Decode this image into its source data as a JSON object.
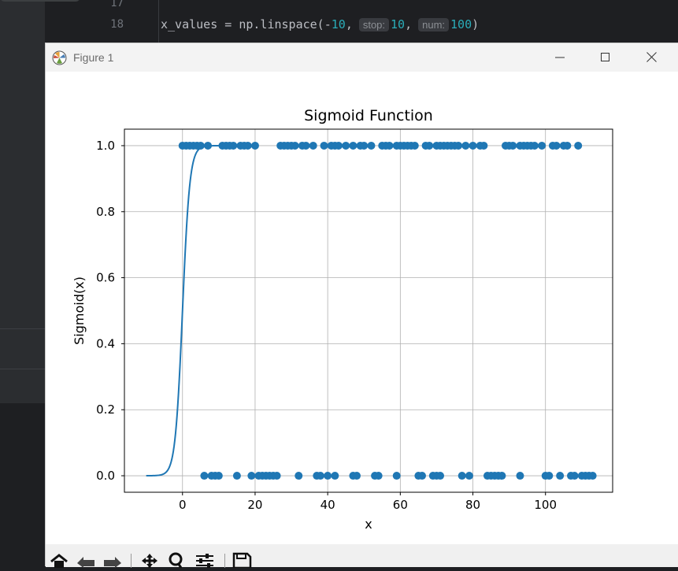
{
  "ide": {
    "line_numbers": [
      "17",
      "18"
    ],
    "code": {
      "prefix": "x_values = np.linspace(-",
      "start": "10",
      "comma1": ",",
      "hint_stop": "stop:",
      "stop": "10",
      "comma2": ",",
      "hint_num": "num:",
      "num": "100",
      "suffix": ")"
    }
  },
  "window": {
    "title": "Figure 1",
    "minimize_icon": "minimize-icon",
    "maximize_icon": "maximize-icon",
    "close_icon": "close-icon"
  },
  "toolbar": {
    "buttons": [
      "home-icon",
      "back-icon",
      "forward-icon",
      "pan-icon",
      "zoom-icon",
      "configure-subplots-icon",
      "save-icon"
    ]
  },
  "chart_data": {
    "type": "line",
    "title": "Sigmoid Function",
    "xlabel": "x",
    "ylabel": "Sigmoid(x)",
    "xlim": [
      -16,
      118.5
    ],
    "ylim": [
      -0.05,
      1.05
    ],
    "xticks": [
      0,
      20,
      40,
      60,
      80,
      100
    ],
    "xtick_labels": [
      "0",
      "20",
      "40",
      "60",
      "80",
      "100"
    ],
    "yticks": [
      0.0,
      0.2,
      0.4,
      0.6,
      0.8,
      1.0
    ],
    "ytick_labels": [
      "0.0",
      "0.2",
      "0.4",
      "0.6",
      "0.8",
      "1.0"
    ],
    "grid": true,
    "color": "#1f77b4",
    "series": [
      {
        "kind": "line",
        "function": "sigmoid",
        "x_range": [
          -10,
          10
        ],
        "num": 100
      },
      {
        "kind": "scatter",
        "y": 1.0,
        "x": [
          0,
          1,
          2,
          3,
          4,
          5,
          7,
          11,
          12,
          13,
          14,
          16,
          17,
          18,
          20,
          27,
          28,
          29,
          30,
          31,
          33,
          34,
          36,
          39,
          41,
          42,
          43,
          45,
          47,
          49,
          50,
          52,
          55,
          56,
          57,
          59,
          60,
          61,
          62,
          63,
          64,
          67,
          68,
          70,
          71,
          72,
          73,
          74,
          75,
          76,
          78,
          80,
          82,
          83,
          89,
          90,
          91,
          93,
          94,
          95,
          96,
          97,
          99,
          102,
          103,
          105,
          106,
          109
        ]
      },
      {
        "kind": "scatter",
        "y": 0.0,
        "x": [
          6,
          8,
          9,
          10,
          15,
          19,
          21,
          22,
          23,
          24,
          25,
          26,
          32,
          37,
          38,
          40,
          42,
          47,
          48,
          53,
          54,
          59,
          65,
          66,
          69,
          70,
          71,
          77,
          79,
          84,
          85,
          86,
          87,
          88,
          93,
          100,
          101,
          104,
          107,
          108,
          110,
          111,
          112,
          113
        ]
      }
    ]
  }
}
